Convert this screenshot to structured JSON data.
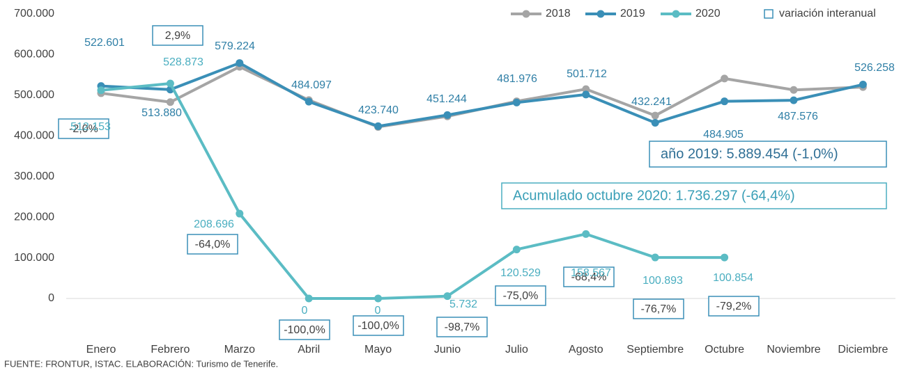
{
  "chart_data": {
    "type": "line",
    "categories": [
      "Enero",
      "Febrero",
      "Marzo",
      "Abril",
      "Mayo",
      "Junio",
      "Julio",
      "Agosto",
      "Septiembre",
      "Octubre",
      "Noviembre",
      "Diciembre"
    ],
    "series": [
      {
        "name": "2018",
        "color": "#a5a5a5",
        "values": [
          505000,
          483000,
          570000,
          488000,
          422000,
          448000,
          485000,
          515000,
          450000,
          541000,
          513000,
          520000
        ]
      },
      {
        "name": "2019",
        "color": "#3a8fb7",
        "values": [
          522601,
          513880,
          579224,
          484097,
          423740,
          451244,
          481976,
          501712,
          432241,
          484905,
          487576,
          526258
        ],
        "value_labels": [
          "522.601",
          "513.880",
          "579.224",
          "484.097",
          "423.740",
          "451.244",
          "481.976",
          "501.712",
          "432.241",
          "484.905",
          "487.576",
          "526.258"
        ]
      },
      {
        "name": "2020",
        "color": "#5bbcc4",
        "values": [
          512153,
          528873,
          208696,
          0,
          0,
          5732,
          120529,
          158567,
          100893,
          100854,
          null,
          null
        ],
        "value_labels": [
          "512.153",
          "528.873",
          "208.696",
          "0",
          "0",
          "5.732",
          "120.529",
          "158.567",
          "100.893",
          "100.854",
          null,
          null
        ]
      }
    ],
    "variation": {
      "name": "variación interanual",
      "color": "#3a8fb7",
      "values": [
        -2.0,
        2.9,
        -64.0,
        -100.0,
        -100.0,
        -98.7,
        -75.0,
        -68.4,
        -76.7,
        -79.2
      ],
      "value_labels": [
        "-2,0%",
        "2,9%",
        "-64,0%",
        "-100,0%",
        "-100,0%",
        "-98,7%",
        "-75,0%",
        "-68,4%",
        "-76,7%",
        "-79,2%"
      ]
    },
    "annotations": [
      "año 2019: 5.889.454 (-1,0%)",
      "Acumulado octubre 2020: 1.736.297 (-64,4%)"
    ],
    "source": "FUENTE: FRONTUR, ISTAC. ELABORACIÓN: Turismo de Tenerife.",
    "ylim": [
      0,
      700000
    ],
    "yticks": [
      {
        "value": 0,
        "label": "0"
      },
      {
        "value": 100000,
        "label": "100.000"
      },
      {
        "value": 200000,
        "label": "200.000"
      },
      {
        "value": 300000,
        "label": "300.000"
      },
      {
        "value": 400000,
        "label": "400.000"
      },
      {
        "value": 500000,
        "label": "500.000"
      },
      {
        "value": 600000,
        "label": "600.000"
      },
      {
        "value": 700000,
        "label": "700.000"
      }
    ],
    "grid": false,
    "legend": "top-right"
  }
}
